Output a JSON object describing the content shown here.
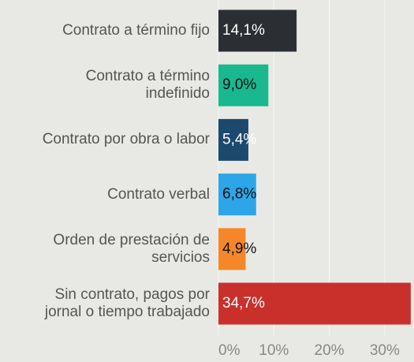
{
  "chart_data": {
    "type": "bar",
    "orientation": "horizontal",
    "categories": [
      "Contrato a término fijo",
      "Contrato a término\nindefinido",
      "Contrato por obra o labor",
      "Contrato verbal",
      "Orden de prestación de\nservicios",
      "Sin contrato, pagos por\njornal o tiempo trabajado"
    ],
    "values": [
      14.1,
      9.0,
      5.4,
      6.8,
      4.9,
      34.7
    ],
    "value_labels": [
      "14,1%",
      "9,0%",
      "5,4%",
      "6,8%",
      "4,9%",
      "34,7%"
    ],
    "colors": [
      "#2b2f33",
      "#1ab88f",
      "#1c4a6e",
      "#2ca6e8",
      "#f5862a",
      "#c9302c"
    ],
    "xlim": [
      0,
      35
    ],
    "xticks": [
      {
        "value": 0,
        "label": "0%"
      },
      {
        "value": 10,
        "label": "10%"
      },
      {
        "value": 20,
        "label": "20%"
      },
      {
        "value": 30,
        "label": "30%"
      }
    ],
    "grid": true
  }
}
